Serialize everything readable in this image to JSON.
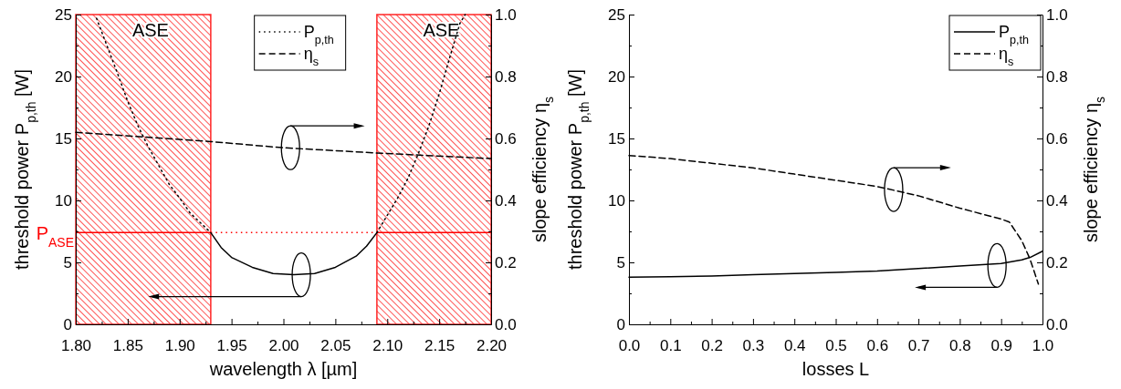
{
  "chart_data": [
    {
      "type": "line",
      "xlabel": "wavelength λ [µm]",
      "ylabel": "threshold power P$_{p,th}$ [W]",
      "y2label": "slope efficiency η$_{s}$",
      "xlim": [
        1.8,
        2.2
      ],
      "xticks": [
        {
          "value": 1.8,
          "label": "1.80"
        },
        {
          "value": 1.825,
          "label": null
        },
        {
          "value": 1.85,
          "label": "1.85"
        },
        {
          "value": 1.875,
          "label": null
        },
        {
          "value": 1.9,
          "label": "1.90"
        },
        {
          "value": 1.925,
          "label": null
        },
        {
          "value": 1.95,
          "label": "1.95"
        },
        {
          "value": 1.975,
          "label": null
        },
        {
          "value": 2.0,
          "label": "2.00"
        },
        {
          "value": 2.025,
          "label": null
        },
        {
          "value": 2.05,
          "label": "2.05"
        },
        {
          "value": 2.075,
          "label": null
        },
        {
          "value": 2.1,
          "label": "2.10"
        },
        {
          "value": 2.125,
          "label": null
        },
        {
          "value": 2.15,
          "label": "2.15"
        },
        {
          "value": 2.175,
          "label": null
        },
        {
          "value": 2.2,
          "label": "2.20"
        }
      ],
      "ylim": [
        0,
        25
      ],
      "yticks": [
        0,
        {
          "value": 2.5,
          "label": null
        },
        5,
        {
          "value": 7.5,
          "label": null
        },
        10,
        {
          "value": 12.5,
          "label": null
        },
        15,
        {
          "value": 17.5,
          "label": null
        },
        20,
        {
          "value": 22.5,
          "label": null
        },
        25
      ],
      "y2lim": [
        0,
        1
      ],
      "y2ticks": [
        {
          "value": 0,
          "label": "0.0"
        },
        {
          "value": 0.1,
          "label": null
        },
        0.2,
        {
          "value": 0.3,
          "label": null
        },
        0.4,
        {
          "value": 0.5,
          "label": null
        },
        0.6,
        {
          "value": 0.7,
          "label": null
        },
        0.8,
        {
          "value": 0.9,
          "label": null
        },
        {
          "value": 1,
          "label": "1.0"
        }
      ],
      "series": [
        {
          "name": "P$_{p,th}$",
          "color": "#000000",
          "line_style": "dotted",
          "x": [
            1.82,
            1.83,
            1.84,
            1.85,
            1.86,
            1.87,
            1.88,
            1.89,
            1.9,
            1.91,
            1.92,
            1.93,
            null,
            2.09,
            2.1,
            2.11,
            2.12,
            2.13,
            2.14,
            2.15,
            2.16,
            2.17,
            2.175
          ],
          "values": [
            24.7,
            22.5,
            20.3,
            18,
            16,
            14.3,
            12.8,
            11.3,
            10.2,
            9,
            8.2,
            7.4,
            null,
            7.4,
            8.8,
            10.2,
            11.8,
            13.8,
            16,
            18.6,
            21.5,
            24.3,
            25
          ]
        },
        {
          "color": "#000000",
          "line_style": "solid",
          "x": [
            1.93,
            1.94,
            1.95,
            1.97,
            1.99,
            2.01,
            2.03,
            2.05,
            2.07,
            2.08,
            2.09
          ],
          "values": [
            7.4,
            6.2,
            5.4,
            4.6,
            4.1,
            4.0,
            4.1,
            4.6,
            5.5,
            6.3,
            7.4
          ]
        },
        {
          "name": "η$_{s}$",
          "color": "#000000",
          "line_style": "dashed",
          "axis": "y2",
          "x": [
            1.8,
            1.93,
            2.0,
            2.09,
            2.2
          ],
          "values": [
            0.62,
            0.59,
            0.57,
            0.553,
            0.535
          ]
        }
      ],
      "bands": [
        {
          "axis": "x",
          "from": 1.8,
          "to": 1.93,
          "label": "ASE",
          "color": "#ff0000"
        },
        {
          "axis": "x",
          "from": 2.09,
          "to": 2.2,
          "label": "ASE",
          "color": "#ff0000"
        }
      ],
      "ref_lines": [
        {
          "axis": "y",
          "value": 7.4,
          "label": "P$_{ASE}$",
          "color": "#ff0000",
          "line_style": "dotted"
        }
      ],
      "legend": "top",
      "grid": false
    },
    {
      "type": "line",
      "xlabel": "losses L",
      "ylabel": "threshold power P$_{p,th}$ [W]",
      "y2label": "slope efficiency η$_{s}$",
      "xlim": [
        0,
        1
      ],
      "xticks": [
        {
          "value": 0,
          "label": "0.0"
        },
        {
          "value": 0.05,
          "label": null
        },
        0.1,
        {
          "value": 0.15,
          "label": null
        },
        0.2,
        {
          "value": 0.25,
          "label": null
        },
        0.3,
        {
          "value": 0.35,
          "label": null
        },
        0.4,
        {
          "value": 0.45,
          "label": null
        },
        0.5,
        {
          "value": 0.55,
          "label": null
        },
        0.6,
        {
          "value": 0.65,
          "label": null
        },
        0.7,
        {
          "value": 0.75,
          "label": null
        },
        0.8,
        {
          "value": 0.85,
          "label": null
        },
        0.9,
        {
          "value": 0.95,
          "label": null
        },
        {
          "value": 1,
          "label": "1.0"
        }
      ],
      "ylim": [
        0,
        25
      ],
      "yticks": [
        0,
        {
          "value": 2.5,
          "label": null
        },
        5,
        {
          "value": 7.5,
          "label": null
        },
        10,
        {
          "value": 12.5,
          "label": null
        },
        15,
        {
          "value": 17.5,
          "label": null
        },
        20,
        {
          "value": 22.5,
          "label": null
        },
        25
      ],
      "y2lim": [
        0,
        1
      ],
      "y2ticks": [
        {
          "value": 0,
          "label": "0.0"
        },
        {
          "value": 0.1,
          "label": null
        },
        0.2,
        {
          "value": 0.3,
          "label": null
        },
        0.4,
        {
          "value": 0.5,
          "label": null
        },
        0.6,
        {
          "value": 0.7,
          "label": null
        },
        0.8,
        {
          "value": 0.9,
          "label": null
        },
        {
          "value": 1,
          "label": "1.0"
        }
      ],
      "series": [
        {
          "name": "P$_{p,th}$",
          "color": "#000000",
          "line_style": "solid",
          "x": [
            0,
            0.1,
            0.2,
            0.3,
            0.4,
            0.5,
            0.6,
            0.7,
            0.8,
            0.9,
            0.95,
            0.97,
            1.0
          ],
          "values": [
            3.8,
            3.85,
            3.9,
            4.0,
            4.1,
            4.2,
            4.3,
            4.5,
            4.7,
            4.9,
            5.2,
            5.4,
            5.9
          ]
        },
        {
          "name": "η$_{s}$",
          "color": "#000000",
          "line_style": "dashed",
          "axis": "y2",
          "x": [
            0,
            0.1,
            0.2,
            0.3,
            0.4,
            0.5,
            0.6,
            0.7,
            0.8,
            0.9,
            0.92,
            0.95,
            0.97,
            0.99
          ],
          "values": [
            0.545,
            0.535,
            0.52,
            0.505,
            0.485,
            0.465,
            0.445,
            0.415,
            0.375,
            0.34,
            0.33,
            0.27,
            0.21,
            0.13
          ]
        }
      ],
      "legend": "top right",
      "grid": false
    }
  ]
}
